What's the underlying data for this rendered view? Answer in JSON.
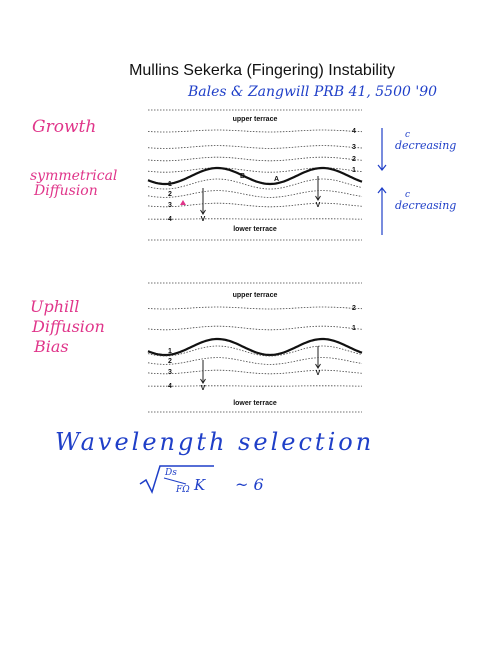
{
  "title": "Mullins Sekerka (Fingering) Instability",
  "reference": "Bales & Zangwill PRB 41, 5500 '90",
  "margin_notes": {
    "growth": "Growth",
    "symmetrical_diffusion": [
      "symmetrical",
      "Diffusion"
    ],
    "uphill_diffusion_bias": [
      "Uphill",
      "Diffusion",
      "Bias"
    ]
  },
  "panels": [
    {
      "upper_label": "upper terrace",
      "lower_label": "lower terrace",
      "upper_step_labels": [
        "4",
        "3",
        "2",
        "1"
      ],
      "lower_step_labels": [
        "1",
        "2",
        "3",
        "4"
      ],
      "wave_labels": [
        "B",
        "A"
      ],
      "arrow_labels": [
        "V",
        "V"
      ],
      "annotations": [
        {
          "symbol": "c",
          "text": "decreasing"
        },
        {
          "symbol": "c",
          "text": "decreasing"
        }
      ]
    },
    {
      "upper_label": "upper terrace",
      "lower_label": "lower terrace",
      "upper_step_labels": [
        "2",
        "1"
      ],
      "lower_step_labels": [
        "1",
        "2",
        "3",
        "4"
      ],
      "arrow_labels": [
        "V",
        "V"
      ]
    }
  ],
  "wavelength": {
    "heading": "Wavelength selection",
    "numerator": "Ds",
    "denominator": "FΩ",
    "factor": "K",
    "relation": "~ 6"
  }
}
